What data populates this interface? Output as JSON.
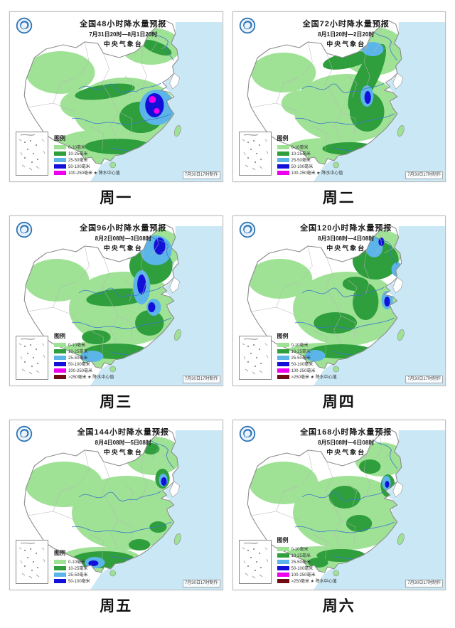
{
  "legend_title": "图例",
  "colors": {
    "sea": "#c9e7f5",
    "light_green": "#9fe296",
    "green": "#2f9e3c",
    "light_blue": "#5cb5e8",
    "blue": "#1310d9",
    "magenta": "#ee00ee",
    "dark_red": "#700c16"
  },
  "maps": [
    {
      "title": "全国48小时降水量预报",
      "period": "7月31日20时—8月1日20时",
      "agency": "中央气象台",
      "label": "周一",
      "watermark": "7月30日17时制作",
      "legend": [
        {
          "color": "#9fe296",
          "label": "0-10毫米"
        },
        {
          "color": "#2f9e3c",
          "label": "10-25毫米"
        },
        {
          "color": "#5cb5e8",
          "label": "25-50毫米"
        },
        {
          "color": "#1310d9",
          "label": "50-100毫米"
        },
        {
          "color": "#ee00ee",
          "label": "100-250毫米 ★ 降水中心值"
        }
      ]
    },
    {
      "title": "全国72小时降水量预报",
      "period": "8月1日20时—2日20时",
      "agency": "中央气象台",
      "label": "周二",
      "watermark": "7月30日17时制作",
      "legend": [
        {
          "color": "#9fe296",
          "label": "0-10毫米"
        },
        {
          "color": "#2f9e3c",
          "label": "10-25毫米"
        },
        {
          "color": "#5cb5e8",
          "label": "25-50毫米"
        },
        {
          "color": "#1310d9",
          "label": "50-100毫米"
        },
        {
          "color": "#ee00ee",
          "label": "100-250毫米 ★ 降水中心值"
        }
      ]
    },
    {
      "title": "全国96小时降水量预报",
      "period": "8月2日08时—3日08时",
      "agency": "中央气象台",
      "label": "周三",
      "watermark": "7月30日17时制作",
      "legend": [
        {
          "color": "#9fe296",
          "label": "0-10毫米"
        },
        {
          "color": "#2f9e3c",
          "label": "10-25毫米"
        },
        {
          "color": "#5cb5e8",
          "label": "25-50毫米"
        },
        {
          "color": "#1310d9",
          "label": "50-100毫米"
        },
        {
          "color": "#ee00ee",
          "label": "100-250毫米"
        },
        {
          "color": "#700c16",
          "label": ">250毫米 ★ 降水中心值"
        }
      ]
    },
    {
      "title": "全国120小时降水量预报",
      "period": "8月3日08时—4日08时",
      "agency": "中央气象台",
      "label": "周四",
      "watermark": "7月30日17时制作",
      "legend": [
        {
          "color": "#9fe296",
          "label": "0-10毫米"
        },
        {
          "color": "#2f9e3c",
          "label": "10-25毫米"
        },
        {
          "color": "#5cb5e8",
          "label": "25-50毫米"
        },
        {
          "color": "#1310d9",
          "label": "50-100毫米"
        },
        {
          "color": "#ee00ee",
          "label": "100-250毫米"
        },
        {
          "color": "#700c16",
          "label": ">250毫米 ★ 降水中心值"
        }
      ]
    },
    {
      "title": "全国144小时降水量预报",
      "period": "8月4日08时—5日08时",
      "agency": "中央气象台",
      "label": "周五",
      "watermark": "7月30日17时制作",
      "legend": [
        {
          "color": "#9fe296",
          "label": "0-10毫米"
        },
        {
          "color": "#2f9e3c",
          "label": "10-25毫米"
        },
        {
          "color": "#5cb5e8",
          "label": "25-50毫米"
        },
        {
          "color": "#1310d9",
          "label": "50-100毫米"
        }
      ]
    },
    {
      "title": "全国168小时降水量预报",
      "period": "8月5日08时—6日08时",
      "agency": "中央气象台",
      "label": "周六",
      "watermark": "7月30日17时制作",
      "legend": [
        {
          "color": "#9fe296",
          "label": "0-10毫米"
        },
        {
          "color": "#2f9e3c",
          "label": "10-25毫米"
        },
        {
          "color": "#5cb5e8",
          "label": "25-50毫米"
        },
        {
          "color": "#1310d9",
          "label": "50-100毫米"
        },
        {
          "color": "#ee00ee",
          "label": "100-250毫米"
        },
        {
          "color": "#700c16",
          "label": ">250毫米 ★ 降水中心值"
        }
      ]
    }
  ]
}
